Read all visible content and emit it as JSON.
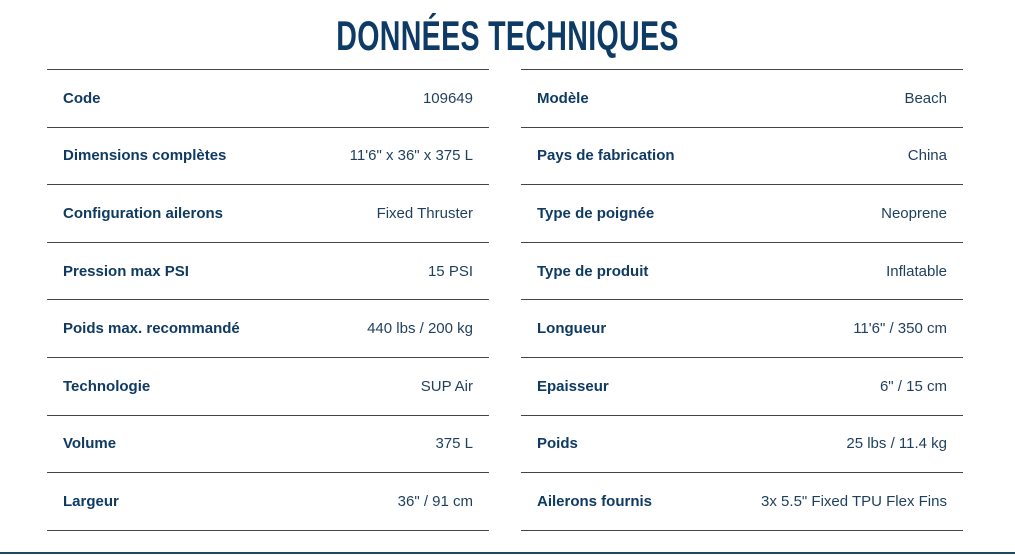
{
  "header": {
    "title": "DONNÉES TECHNIQUES"
  },
  "tables": [
    {
      "rows": [
        [
          "Code",
          "109649"
        ],
        [
          "Dimensions complètes",
          "11'6\" x 36\" x 375 L"
        ],
        [
          "Configuration ailerons",
          "Fixed Thruster"
        ],
        [
          "Pression max PSI",
          "15 PSI"
        ],
        [
          "Poids max. recommandé",
          "440 lbs / 200 kg"
        ],
        [
          "Technologie",
          "SUP Air"
        ],
        [
          "Volume",
          "375 L"
        ],
        [
          "Largeur",
          "36\" / 91 cm"
        ]
      ]
    },
    {
      "rows": [
        [
          "Modèle",
          "Beach"
        ],
        [
          "Pays de fabrication",
          "China"
        ],
        [
          "Type de poignée",
          "Neoprene"
        ],
        [
          "Type de produit",
          "Inflatable"
        ],
        [
          "Longueur",
          "11'6\" / 350 cm"
        ],
        [
          "Epaisseur",
          "6\" / 15 cm"
        ],
        [
          "Poids",
          "25 lbs / 11.4 kg"
        ],
        [
          "Ailerons fournis",
          "3x 5.5\" Fixed TPU Flex Fins"
        ]
      ]
    }
  ]
}
